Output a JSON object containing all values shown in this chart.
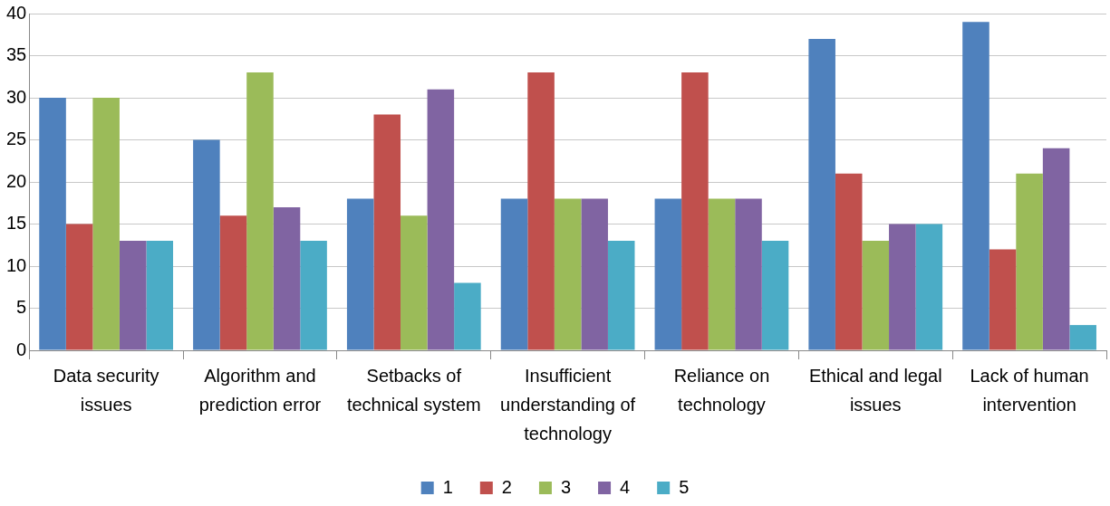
{
  "chart_data": {
    "type": "bar",
    "categories": [
      "Data security issues",
      "Algorithm and prediction error",
      "Setbacks of technical system",
      "Insufficient understanding of technology",
      "Reliance on technology",
      "Ethical and legal issues",
      "Lack of human intervention"
    ],
    "series": [
      {
        "name": "1",
        "color": "#4f81bd",
        "values": [
          30,
          25,
          18,
          18,
          18,
          37,
          39
        ]
      },
      {
        "name": "2",
        "color": "#c0504d",
        "values": [
          15,
          16,
          28,
          33,
          33,
          21,
          12
        ]
      },
      {
        "name": "3",
        "color": "#9bbb59",
        "values": [
          30,
          33,
          16,
          18,
          18,
          13,
          21
        ]
      },
      {
        "name": "4",
        "color": "#8064a2",
        "values": [
          13,
          17,
          31,
          18,
          18,
          15,
          24
        ]
      },
      {
        "name": "5",
        "color": "#4bacc6",
        "values": [
          13,
          13,
          8,
          13,
          13,
          15,
          3
        ]
      }
    ],
    "ylim": [
      0,
      40
    ],
    "yticks": [
      0,
      5,
      10,
      15,
      20,
      25,
      30,
      35,
      40
    ],
    "grid": "y",
    "legend": "bottom"
  }
}
